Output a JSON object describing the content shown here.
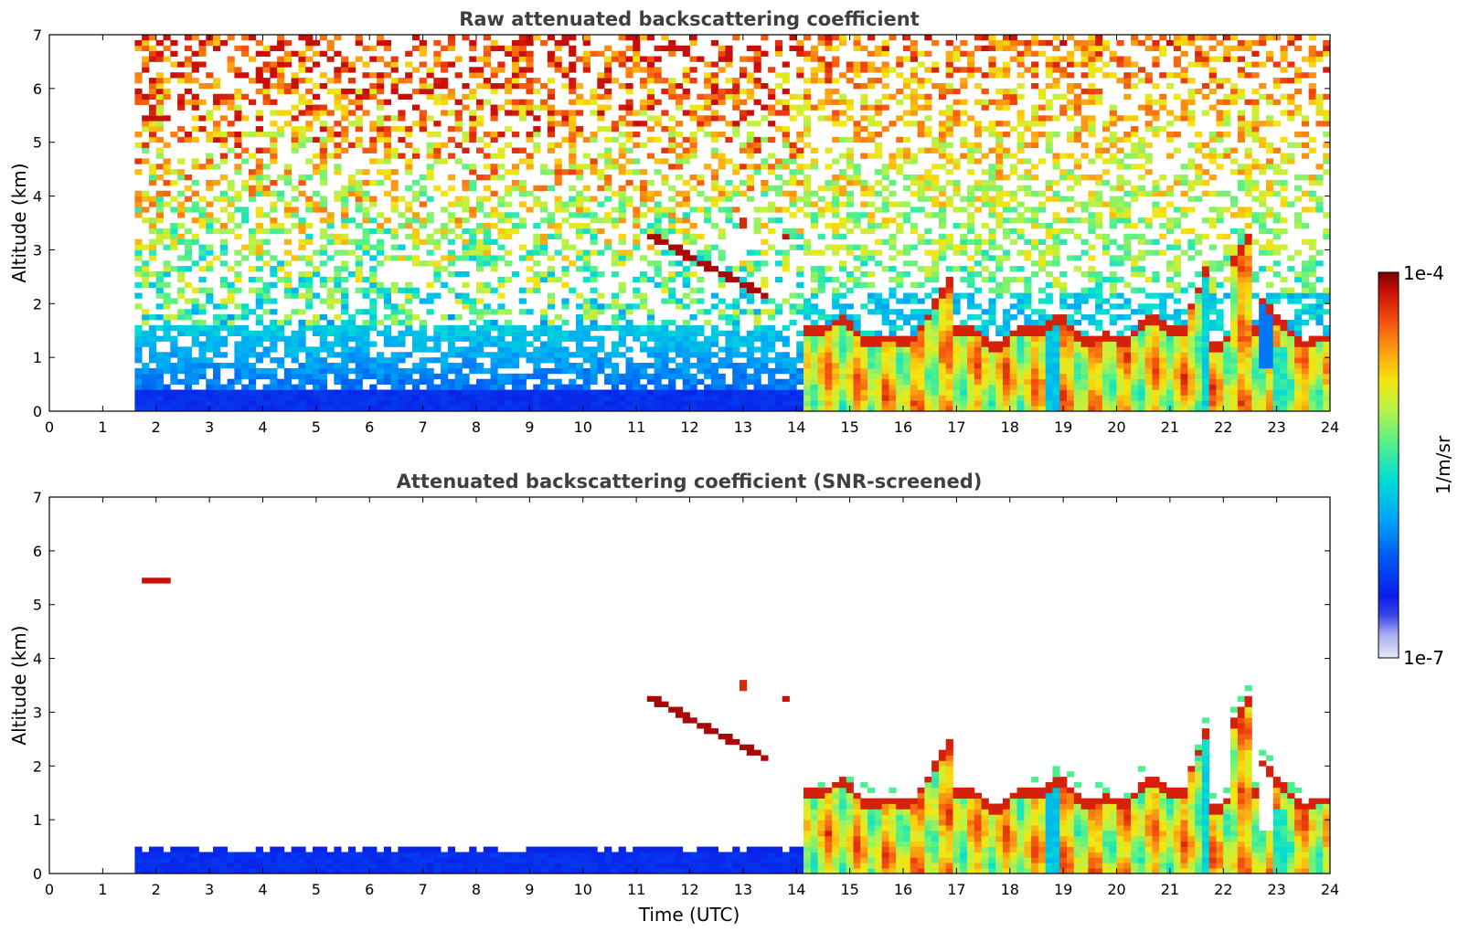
{
  "chart_data": [
    {
      "type": "heatmap",
      "title": "Raw attenuated backscattering coefficient",
      "xlabel": "",
      "ylabel": "Altitude (km)",
      "xlim": [
        0,
        24
      ],
      "ylim": [
        0,
        7
      ],
      "xticks": [
        "0",
        "1",
        "2",
        "3",
        "4",
        "5",
        "6",
        "7",
        "8",
        "9",
        "10",
        "11",
        "12",
        "13",
        "14",
        "15",
        "16",
        "17",
        "18",
        "19",
        "20",
        "21",
        "22",
        "23",
        "24"
      ],
      "yticks": [
        "0",
        "1",
        "2",
        "3",
        "4",
        "5",
        "6",
        "7"
      ],
      "data_start_time": 1.55,
      "features": {
        "elevated_layer": {
          "time": [
            1.7,
            2.3
          ],
          "altitude": 5.45
        },
        "descending_layer": {
          "time": [
            11.2,
            13.5
          ],
          "altitude": [
            3.3,
            2.1
          ]
        },
        "cloud_top_afternoon": {
          "time": [
            14.2,
            23.9
          ],
          "altitude_range": [
            1.3,
            1.8
          ]
        },
        "cloud_peak": {
          "time": 22.4,
          "altitude": 3.2
        }
      }
    },
    {
      "type": "heatmap",
      "title": "Attenuated backscattering coefficient (SNR-screened)",
      "xlabel": "Time (UTC)",
      "ylabel": "Altitude (km)",
      "xlim": [
        0,
        24
      ],
      "ylim": [
        0,
        7
      ],
      "xticks": [
        "0",
        "1",
        "2",
        "3",
        "4",
        "5",
        "6",
        "7",
        "8",
        "9",
        "10",
        "11",
        "12",
        "13",
        "14",
        "15",
        "16",
        "17",
        "18",
        "19",
        "20",
        "21",
        "22",
        "23",
        "24"
      ],
      "yticks": [
        "0",
        "1",
        "2",
        "3",
        "4",
        "5",
        "6",
        "7"
      ],
      "data_start_time": 1.55
    }
  ],
  "colorbar": {
    "label": "1/m/sr",
    "min_label": "1e-7",
    "max_label": "1e-4",
    "scale": "log",
    "colors": [
      "#e6e6f7",
      "#b5b9f2",
      "#5d63ec",
      "#0a1ee8",
      "#0058f4",
      "#00a6f6",
      "#00dcd6",
      "#4cf08f",
      "#b5f24a",
      "#f6e510",
      "#fb9a12",
      "#f24a0e",
      "#c90f0a",
      "#7a0000"
    ]
  }
}
